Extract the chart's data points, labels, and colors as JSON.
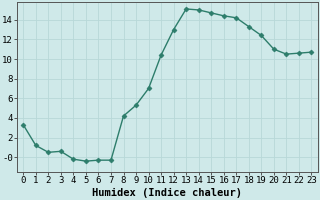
{
  "x": [
    0,
    1,
    2,
    3,
    4,
    5,
    6,
    7,
    8,
    9,
    10,
    11,
    12,
    13,
    14,
    15,
    16,
    17,
    18,
    19,
    20,
    21,
    22,
    23
  ],
  "y": [
    3.3,
    1.2,
    0.5,
    0.6,
    -0.2,
    -0.4,
    -0.3,
    -0.3,
    4.2,
    5.3,
    7.0,
    10.4,
    13.0,
    15.1,
    15.0,
    14.7,
    14.4,
    14.2,
    13.3,
    12.4,
    11.0,
    10.5,
    10.6,
    10.7
  ],
  "line_color": "#2d7d6b",
  "marker": "D",
  "markersize": 2.5,
  "linewidth": 1.0,
  "background_color": "#cfe9e9",
  "grid_color": "#b8d8d8",
  "xlabel": "Humidex (Indice chaleur)",
  "xlabel_fontsize": 7.5,
  "tick_fontsize": 6.5,
  "xlim": [
    -0.5,
    23.5
  ],
  "ylim": [
    -1.5,
    15.8
  ],
  "yticks": [
    0,
    2,
    4,
    6,
    8,
    10,
    12,
    14
  ],
  "ytick_labels": [
    "-0",
    "2",
    "4",
    "6",
    "8",
    "10",
    "12",
    "14"
  ],
  "spine_color": "#555555"
}
